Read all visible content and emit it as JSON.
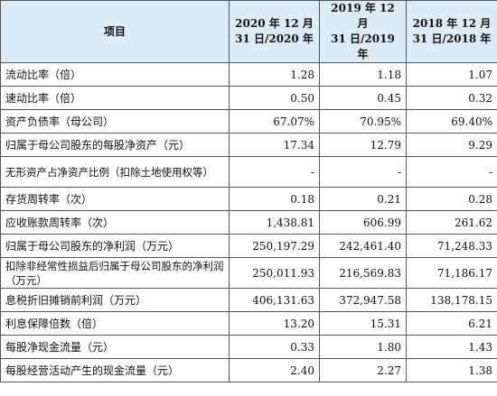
{
  "headers": {
    "item": "项目",
    "col1_line1": "2020 年 12 月",
    "col1_line2": "31 日/2020 年",
    "col2_line1": "2019 年 12 月",
    "col2_line2": "31 日/2019 年",
    "col3_line1": "2018 年 12 月",
    "col3_line2": "31 日/2018 年"
  },
  "rows": [
    {
      "label": "流动比率（倍）",
      "v2020": "1.28",
      "v2019": "1.18",
      "v2018": "1.07"
    },
    {
      "label": "速动比率（倍）",
      "v2020": "0.50",
      "v2019": "0.45",
      "v2018": "0.32"
    },
    {
      "label": "资产负债率（母公司）",
      "v2020": "67.07%",
      "v2019": "70.95%",
      "v2018": "69.40%"
    },
    {
      "label": "归属于母公司股东的每股净资产（元）",
      "v2020": "17.34",
      "v2019": "12.79",
      "v2018": "9.29"
    },
    {
      "label": "无形资产占净资产比例（扣除土地使用权等）",
      "v2020": "-",
      "v2019": "-",
      "v2018": "-"
    },
    {
      "label": "存货周转率（次）",
      "v2020": "0.18",
      "v2019": "0.21",
      "v2018": "0.28"
    },
    {
      "label": "应收账款周转率（次）",
      "v2020": "1,438.81",
      "v2019": "606.99",
      "v2018": "261.62"
    },
    {
      "label": "归属于母公司股东的净利润（万元）",
      "v2020": "250,197.29",
      "v2019": "242,461.40",
      "v2018": "71,248.33"
    },
    {
      "label": "扣除非经常性损益后归属于母公司股东的净利润（万元）",
      "v2020": "250,011.93",
      "v2019": "216,569.83",
      "v2018": "71,186.17"
    },
    {
      "label": "息税折旧摊销前利润（万元）",
      "v2020": "406,131.63",
      "v2019": "372,947.58",
      "v2018": "138,178.15"
    },
    {
      "label": "利息保障倍数（倍）",
      "v2020": "13.20",
      "v2019": "15.31",
      "v2018": "6.21"
    },
    {
      "label": "每股净现金流量（元）",
      "v2020": "0.33",
      "v2019": "1.80",
      "v2018": "1.43"
    },
    {
      "label": "每股经营活动产生的现金流量（元）",
      "v2020": "2.40",
      "v2019": "2.27",
      "v2018": "1.38"
    }
  ]
}
